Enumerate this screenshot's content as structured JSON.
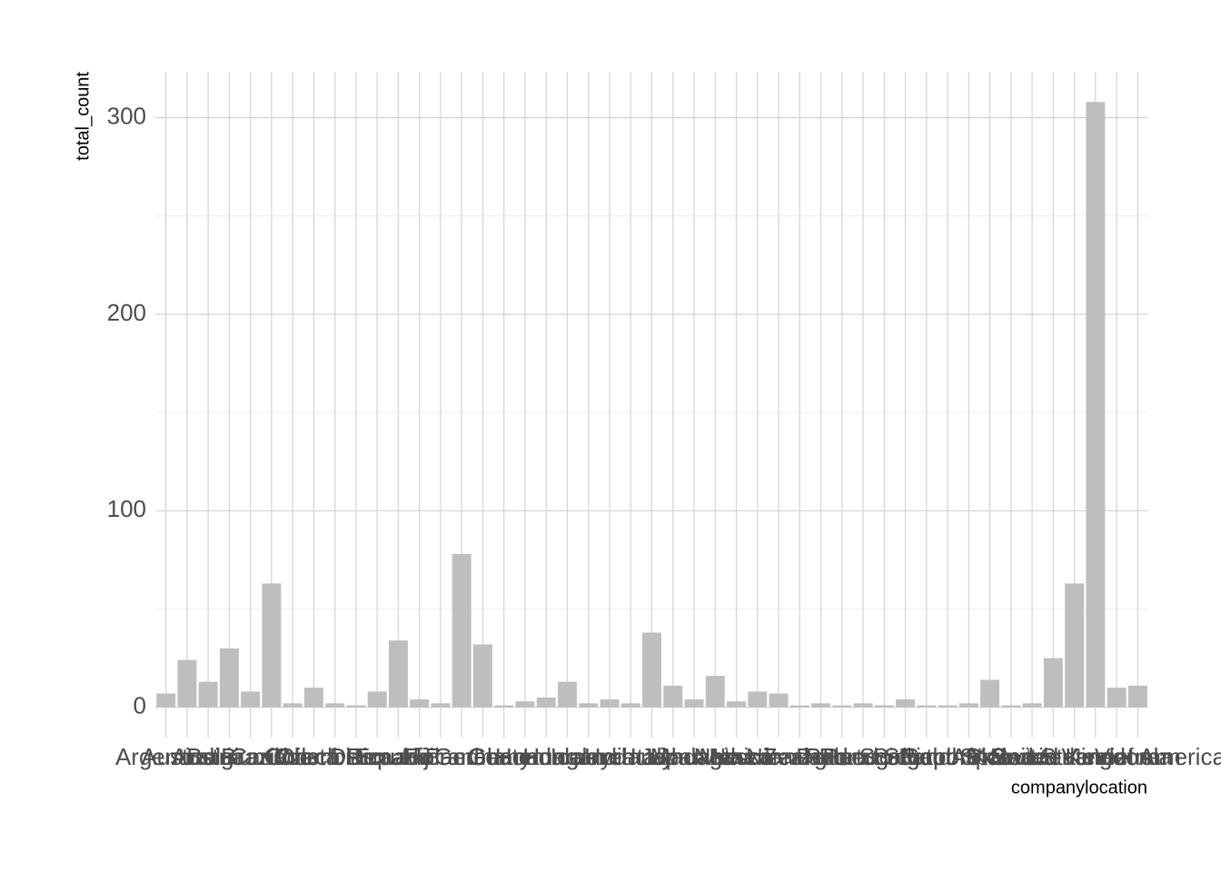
{
  "chart_data": {
    "type": "bar",
    "x_label": "companylocation",
    "y_label": "total_count",
    "categories": [
      "Argentina",
      "Australia",
      "Austria",
      "Belgium",
      "Brazil",
      "Canada",
      "Chile",
      "Colombia",
      "Costa Rica",
      "Czech Republic",
      "Denmark",
      "Ecuador",
      "Fiji",
      "Finland",
      "France",
      "Germany",
      "Ghana",
      "Guatemala",
      "Honduras",
      "Hungary",
      "Iceland",
      "India",
      "Ireland",
      "Italy",
      "Japan",
      "Lithuania",
      "Madagascar",
      "Mexico",
      "Netherlands",
      "New Zealand",
      "Nicaragua",
      "Peru",
      "Poland",
      "Portugal",
      "Puerto Rico",
      "Scotland",
      "Singapore",
      "South Africa",
      "South Korea",
      "Spain",
      "St. Lucia",
      "Sweden",
      "Switzerland",
      "United Kingdom",
      "United States of America",
      "Venezuela",
      "Vietnam"
    ],
    "values": [
      7,
      24,
      13,
      30,
      8,
      63,
      2,
      10,
      2,
      1,
      8,
      34,
      4,
      2,
      78,
      32,
      1,
      3,
      5,
      13,
      2,
      4,
      2,
      38,
      11,
      4,
      16,
      3,
      8,
      7,
      1,
      2,
      1,
      2,
      1,
      4,
      1,
      1,
      2,
      14,
      1,
      2,
      25,
      63,
      308,
      10,
      11
    ],
    "color": "#bebebe",
    "ylim": [
      -15.4,
      323.4
    ],
    "yticks": [
      0,
      100,
      200,
      300
    ],
    "grid": true
  }
}
